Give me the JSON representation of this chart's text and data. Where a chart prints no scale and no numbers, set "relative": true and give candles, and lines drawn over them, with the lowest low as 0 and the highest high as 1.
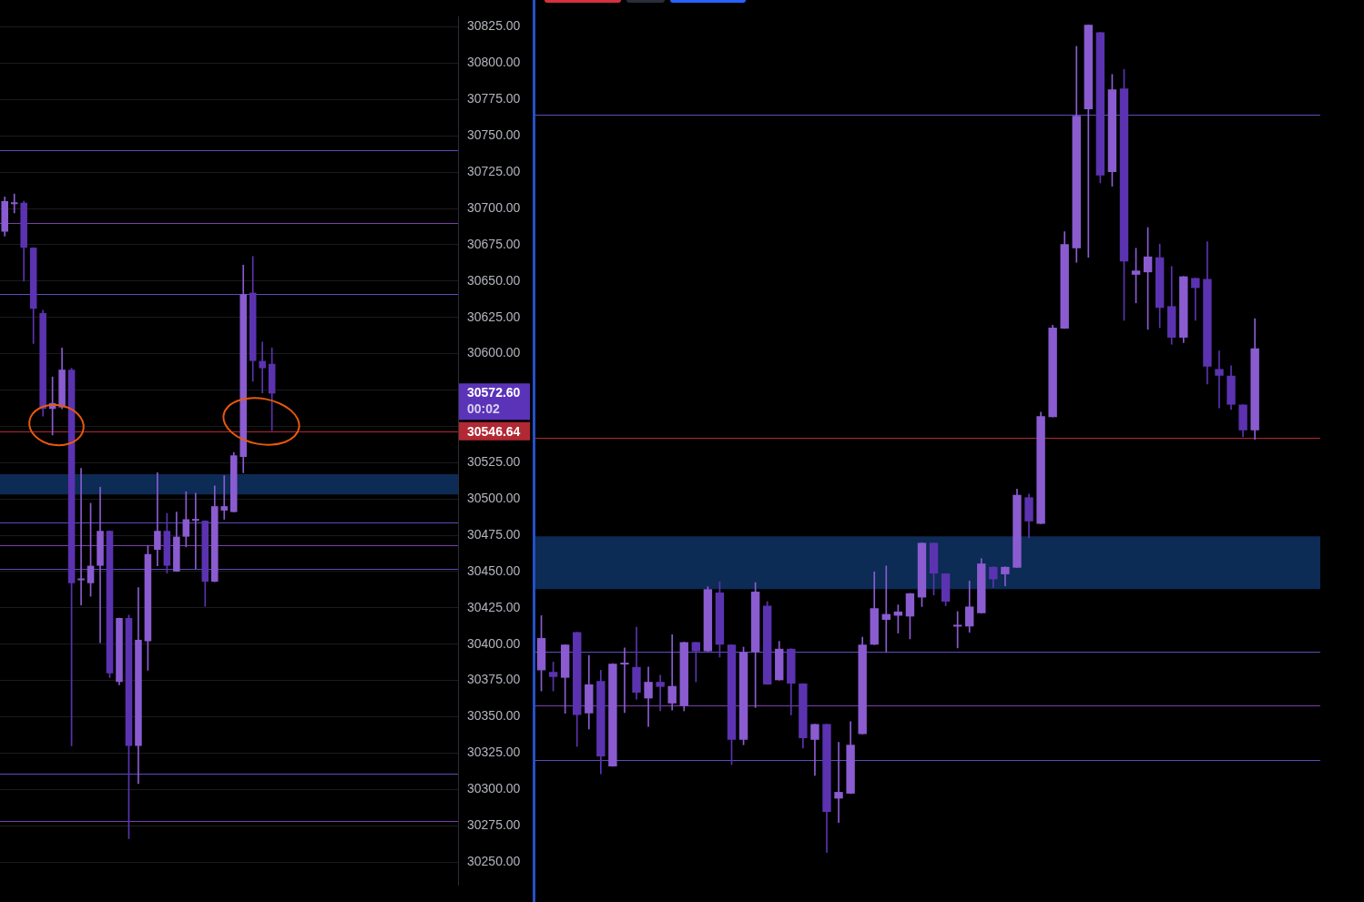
{
  "chart_data": [
    {
      "type": "candlestick",
      "categories": [
        null,
        null,
        null,
        null,
        null,
        null,
        null,
        null,
        null,
        null,
        null,
        null,
        null,
        null,
        null,
        null,
        null,
        null,
        null,
        null,
        null,
        null,
        null,
        null,
        null,
        null,
        null,
        null,
        null,
        null,
        null,
        null,
        null,
        null,
        null,
        null,
        null,
        null,
        null,
        null,
        null,
        null,
        null,
        null,
        null,
        null,
        null,
        null
      ],
      "ohlc": [
        [
          30684,
          30708,
          30681,
          30705
        ],
        [
          30703,
          30710,
          30697,
          30703
        ],
        [
          30704,
          30705,
          30650,
          30673
        ],
        [
          30673,
          30673,
          30607,
          30631
        ],
        [
          30628,
          30630,
          30557,
          30562
        ],
        [
          30562,
          30584,
          30544,
          30566
        ],
        [
          30563,
          30604,
          30562,
          30589
        ],
        [
          30589,
          30590,
          30330,
          30442
        ],
        [
          30444,
          30521,
          30427,
          30444
        ],
        [
          30442,
          30497,
          30433,
          30454
        ],
        [
          30454,
          30508,
          30401,
          30478
        ],
        [
          30478,
          30478,
          30377,
          30380
        ],
        [
          30374,
          30418,
          30372,
          30418
        ],
        [
          30418,
          30420,
          30266,
          30330
        ],
        [
          30330,
          30439,
          30304,
          30403
        ],
        [
          30402,
          30468,
          30382,
          30462
        ],
        [
          30465,
          30518,
          30454,
          30478
        ],
        [
          30478,
          30490,
          30449,
          30454
        ],
        [
          30450,
          30491,
          30450,
          30474
        ],
        [
          30474,
          30505,
          30467,
          30486
        ],
        [
          30486,
          30504,
          30452,
          30485
        ],
        [
          30485,
          30485,
          30426,
          30443
        ],
        [
          30443,
          30509,
          30443,
          30495
        ],
        [
          30492,
          30516,
          30486,
          30495
        ],
        [
          30491,
          30532,
          30491,
          30530
        ],
        [
          30529,
          30661,
          30518,
          30641
        ],
        [
          30642,
          30667,
          30581,
          30595
        ],
        [
          30595,
          30608,
          30573,
          30590
        ],
        [
          30593,
          30604,
          30547,
          30572.6
        ],
        null,
        null,
        null,
        null,
        null,
        null,
        null,
        null,
        null,
        null,
        null,
        null,
        null,
        null,
        null,
        null,
        null,
        null,
        null
      ],
      "colors": [
        "#8a5cd0",
        "#8a5cd0",
        "#5b33b0",
        "#5b33b0",
        "#5b33b0",
        "#8a5cd0",
        "#8a5cd0",
        "#5b33b0",
        "#8a5cd0",
        "#8a5cd0",
        "#8a5cd0",
        "#5b33b0",
        "#8a5cd0",
        "#5b33b0",
        "#8a5cd0",
        "#8a5cd0",
        "#8a5cd0",
        "#5b33b0",
        "#8a5cd0",
        "#8a5cd0",
        "#8a5cd0",
        "#5b33b0",
        "#8a5cd0",
        "#8a5cd0",
        "#8a5cd0",
        "#8a5cd0",
        "#5b33b0",
        "#5b33b0",
        "#5b33b0",
        null,
        null,
        null,
        null,
        null,
        null,
        null,
        null,
        null,
        null,
        null,
        null,
        null,
        null,
        null,
        null,
        null,
        null,
        null
      ],
      "ylim": [
        30234,
        30832
      ],
      "yticks": [
        {
          "value": 30250,
          "label": "30250.00"
        },
        {
          "value": 30275,
          "label": "30275.00"
        },
        {
          "value": 30300,
          "label": "30300.00"
        },
        {
          "value": 30325,
          "label": "30325.00"
        },
        {
          "value": 30350,
          "label": "30350.00"
        },
        {
          "value": 30375,
          "label": "30375.00"
        },
        {
          "value": 30400,
          "label": "30400.00"
        },
        {
          "value": 30425,
          "label": "30425.00"
        },
        {
          "value": 30450,
          "label": "30450.00"
        },
        {
          "value": 30475,
          "label": "30475.00"
        },
        {
          "value": 30500,
          "label": "30500.00"
        },
        {
          "value": 30525,
          "label": "30525.00"
        },
        {
          "value": 30550,
          "label": null
        },
        {
          "value": 30575,
          "label": null
        },
        {
          "value": 30600,
          "label": "30600.00"
        },
        {
          "value": 30625,
          "label": "30625.00"
        },
        {
          "value": 30650,
          "label": "30650.00"
        },
        {
          "value": 30675,
          "label": "30675.00"
        },
        {
          "value": 30700,
          "label": "30700.00"
        },
        {
          "value": 30725,
          "label": "30725.00"
        },
        {
          "value": 30750,
          "label": "30750.00"
        },
        {
          "value": 30775,
          "label": "30775.00"
        },
        {
          "value": 30800,
          "label": "30800.00"
        },
        {
          "value": 30825,
          "label": "30825.00"
        }
      ],
      "grid": "y",
      "bands": [
        {
          "axis": "y",
          "from": 30503,
          "to": 30517,
          "color": "#0c2b55"
        }
      ],
      "ref_lines": [
        {
          "axis": "y",
          "value": 30740,
          "color": "#5e4bbd"
        },
        {
          "axis": "y",
          "value": 30690,
          "color": "#7a3fa8"
        },
        {
          "axis": "y",
          "value": 30641,
          "color": "#5e4bbd"
        },
        {
          "axis": "y",
          "value": 30484,
          "color": "#5e4bbd"
        },
        {
          "axis": "y",
          "value": 30468,
          "color": "#7a3fa8"
        },
        {
          "axis": "y",
          "value": 30452,
          "color": "#5e4bbd"
        },
        {
          "axis": "y",
          "value": 30311,
          "color": "#5e4bbd"
        },
        {
          "axis": "y",
          "value": 30278,
          "color": "#7a3fa8"
        },
        {
          "axis": "y",
          "value": 30546.64,
          "label": "30546.64",
          "color": "#b22833"
        }
      ],
      "annotations": [
        "30572.60",
        "00:02"
      ]
    },
    {
      "type": "candlestick",
      "relative": true,
      "categories": [
        null,
        null,
        null,
        null,
        null,
        null,
        null,
        null,
        null,
        null,
        null,
        null,
        null,
        null,
        null,
        null,
        null,
        null,
        null,
        null,
        null,
        null,
        null,
        null,
        null,
        null,
        null,
        null,
        null,
        null,
        null,
        null,
        null,
        null,
        null,
        null,
        null,
        null,
        null,
        null,
        null,
        null,
        null,
        null,
        null,
        null,
        null,
        null,
        null,
        null,
        null,
        null,
        null,
        null,
        null,
        null,
        null,
        null,
        null,
        null,
        null,
        null,
        null,
        null,
        null,
        null
      ],
      "ohlc": [
        [
          0.22,
          0.286,
          0.195,
          0.259
        ],
        [
          0.218,
          0.23,
          0.195,
          0.212
        ],
        [
          0.211,
          0.251,
          0.168,
          0.251
        ],
        [
          0.266,
          0.266,
          0.128,
          0.166
        ],
        [
          0.168,
          0.238,
          0.149,
          0.203
        ],
        [
          0.207,
          0.22,
          0.095,
          0.116
        ],
        [
          0.104,
          0.228,
          0.104,
          0.228
        ],
        [
          0.227,
          0.247,
          0.169,
          0.228
        ],
        [
          0.224,
          0.272,
          0.185,
          0.193
        ],
        [
          0.186,
          0.224,
          0.152,
          0.206
        ],
        [
          0.206,
          0.214,
          0.171,
          0.2
        ],
        [
          0.18,
          0.263,
          0.172,
          0.201
        ],
        [
          0.177,
          0.254,
          0.171,
          0.254
        ],
        [
          0.254,
          0.254,
          0.206,
          0.243
        ],
        [
          0.243,
          0.321,
          0.243,
          0.318
        ],
        [
          0.314,
          0.327,
          0.236,
          0.251
        ],
        [
          0.251,
          0.251,
          0.106,
          0.136
        ],
        [
          0.136,
          0.248,
          0.13,
          0.242
        ],
        [
          0.242,
          0.326,
          0.175,
          0.315
        ],
        [
          0.298,
          0.303,
          0.203,
          0.203
        ],
        [
          0.208,
          0.255,
          0.208,
          0.246
        ],
        [
          0.246,
          0.246,
          0.166,
          0.204
        ],
        [
          0.204,
          0.204,
          0.126,
          0.138
        ],
        [
          0.136,
          0.155,
          0.093,
          0.155
        ],
        [
          0.155,
          0.155,
          0,
          0.049
        ],
        [
          0.065,
          0.133,
          0.036,
          0.073
        ],
        [
          0.071,
          0.158,
          0.071,
          0.13
        ],
        [
          0.143,
          0.26,
          0.143,
          0.251
        ],
        [
          0.251,
          0.339,
          0.251,
          0.295
        ],
        [
          0.281,
          0.346,
          0.242,
          0.288
        ],
        [
          0.286,
          0.299,
          0.265,
          0.291
        ],
        [
          0.285,
          0.313,
          0.258,
          0.313
        ],
        [
          0.308,
          0.374,
          0.297,
          0.374
        ],
        [
          0.374,
          0.374,
          0.311,
          0.337
        ],
        [
          0.337,
          0.337,
          0.298,
          0.303
        ],
        [
          0.275,
          0.291,
          0.247,
          0.275
        ],
        [
          0.273,
          0.328,
          0.266,
          0.297
        ],
        [
          0.289,
          0.355,
          0.289,
          0.349
        ],
        [
          0.345,
          0.345,
          0.32,
          0.33
        ],
        [
          0.336,
          0.345,
          0.322,
          0.345
        ],
        [
          0.344,
          0.439,
          0.344,
          0.432
        ],
        [
          0.429,
          0.433,
          0.38,
          0.4
        ],
        [
          0.397,
          0.532,
          0.397,
          0.527
        ],
        [
          0.526,
          0.637,
          0.526,
          0.634
        ],
        [
          0.633,
          0.75,
          0.633,
          0.735
        ],
        [
          0.73,
          0.974,
          0.713,
          0.89
        ],
        [
          0.898,
          1,
          0.719,
          1
        ],
        [
          0.991,
          0.991,
          0.809,
          0.818
        ],
        [
          0.822,
          0.94,
          0.805,
          0.922
        ],
        [
          0.923,
          0.946,
          0.643,
          0.714
        ],
        [
          0.698,
          0.73,
          0.664,
          0.703
        ],
        [
          0.701,
          0.755,
          0.632,
          0.72
        ],
        [
          0.719,
          0.735,
          0.634,
          0.658
        ],
        [
          0.66,
          0.708,
          0.614,
          0.622
        ],
        [
          0.622,
          0.696,
          0.616,
          0.696
        ],
        [
          0.694,
          0.694,
          0.643,
          0.682
        ],
        [
          0.693,
          0.738,
          0.566,
          0.587
        ],
        [
          0.584,
          0.606,
          0.537,
          0.576
        ],
        [
          0.576,
          0.588,
          0.535,
          0.541
        ],
        [
          0.541,
          0.541,
          0.502,
          0.51
        ],
        [
          0.51,
          0.645,
          0.499,
          0.609
        ],
        null,
        null,
        null,
        null,
        null
      ],
      "colors": [
        "#8a5cd0",
        "#5b33b0",
        "#8a5cd0",
        "#5b33b0",
        "#8a5cd0",
        "#5b33b0",
        "#8a5cd0",
        "#8a5cd0",
        "#5b33b0",
        "#8a5cd0",
        "#5b33b0",
        "#8a5cd0",
        "#8a5cd0",
        "#5b33b0",
        "#8a5cd0",
        "#5b33b0",
        "#5b33b0",
        "#8a5cd0",
        "#8a5cd0",
        "#5b33b0",
        "#8a5cd0",
        "#5b33b0",
        "#5b33b0",
        "#8a5cd0",
        "#5b33b0",
        "#8a5cd0",
        "#8a5cd0",
        "#8a5cd0",
        "#8a5cd0",
        "#8a5cd0",
        "#8a5cd0",
        "#8a5cd0",
        "#8a5cd0",
        "#5b33b0",
        "#5b33b0",
        "#8a5cd0",
        "#8a5cd0",
        "#8a5cd0",
        "#5b33b0",
        "#8a5cd0",
        "#8a5cd0",
        "#5b33b0",
        "#8a5cd0",
        "#8a5cd0",
        "#8a5cd0",
        "#8a5cd0",
        "#8a5cd0",
        "#5b33b0",
        "#8a5cd0",
        "#5b33b0",
        "#8a5cd0",
        "#8a5cd0",
        "#5b33b0",
        "#5b33b0",
        "#8a5cd0",
        "#5b33b0",
        "#5b33b0",
        "#5b33b0",
        "#5b33b0",
        "#5b33b0",
        "#8a5cd0",
        null,
        null,
        null,
        null,
        null
      ],
      "bands": [
        {
          "axis": "y",
          "from": 0.318,
          "to": 0.382,
          "color": "#0c2b55"
        }
      ],
      "ref_lines": [
        {
          "axis": "y",
          "value": 0.891,
          "color": "#5e4bbd"
        },
        {
          "axis": "y",
          "value": 0.242,
          "color": "#5e4bbd"
        },
        {
          "axis": "y",
          "value": 0.178,
          "color": "#7a3fa8"
        },
        {
          "axis": "y",
          "value": 0.112,
          "color": "#5e4bbd"
        },
        {
          "axis": "y",
          "value": 0.501,
          "color": "#b22833"
        }
      ]
    }
  ]
}
